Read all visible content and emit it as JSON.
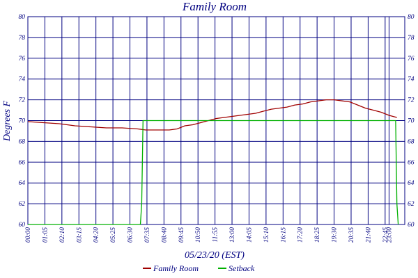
{
  "chart_data": {
    "type": "line",
    "title": "Family Room",
    "xlabel": "05/23/20 (EST)",
    "ylabel": "Degrees F",
    "ylim": [
      60,
      80
    ],
    "y_ticks": [
      60,
      62,
      64,
      66,
      68,
      70,
      72,
      74,
      76,
      78,
      80
    ],
    "x_range_minutes": [
      0,
      1440
    ],
    "x_tick_labels": [
      "00:00",
      "01:05",
      "02:10",
      "03:15",
      "04:20",
      "05:25",
      "06:30",
      "07:35",
      "08:40",
      "09:45",
      "10:50",
      "11:55",
      "13:00",
      "14:05",
      "15:10",
      "16:15",
      "17:20",
      "18:25",
      "19:30",
      "20:35",
      "21:40",
      "22:45",
      "23:00"
    ],
    "grid": true,
    "legend_position": "bottom",
    "colors": {
      "frame": "#000080",
      "family_room": "#a00000",
      "setback": "#00b000",
      "background": "#ffffff"
    },
    "series": [
      {
        "name": "Family Room",
        "color": "#a00000",
        "x": [
          "00:00",
          "01:00",
          "02:00",
          "03:00",
          "04:00",
          "05:00",
          "06:00",
          "07:00",
          "07:30",
          "08:00",
          "09:00",
          "09:30",
          "10:00",
          "10:30",
          "11:00",
          "11:30",
          "12:00",
          "12:30",
          "13:00",
          "13:30",
          "14:00",
          "14:30",
          "15:00",
          "15:30",
          "16:00",
          "16:30",
          "17:00",
          "17:30",
          "18:00",
          "18:30",
          "19:00",
          "19:30",
          "20:00",
          "20:30",
          "21:00",
          "21:30",
          "22:00",
          "22:30",
          "23:00",
          "23:30"
        ],
        "values": [
          69.9,
          69.8,
          69.7,
          69.5,
          69.4,
          69.3,
          69.3,
          69.2,
          69.1,
          69.1,
          69.1,
          69.2,
          69.5,
          69.6,
          69.8,
          70.0,
          70.2,
          70.3,
          70.4,
          70.5,
          70.6,
          70.7,
          70.9,
          71.1,
          71.2,
          71.3,
          71.5,
          71.6,
          71.8,
          71.9,
          72.0,
          72.0,
          71.9,
          71.8,
          71.5,
          71.2,
          71.0,
          70.8,
          70.5,
          70.3
        ]
      },
      {
        "name": "Setback",
        "color": "#00b000",
        "x": [
          "00:00",
          "07:10",
          "07:15",
          "07:20",
          "23:25",
          "23:30",
          "23:35"
        ],
        "values": [
          60,
          60,
          62,
          70,
          70,
          62,
          60
        ]
      }
    ]
  }
}
